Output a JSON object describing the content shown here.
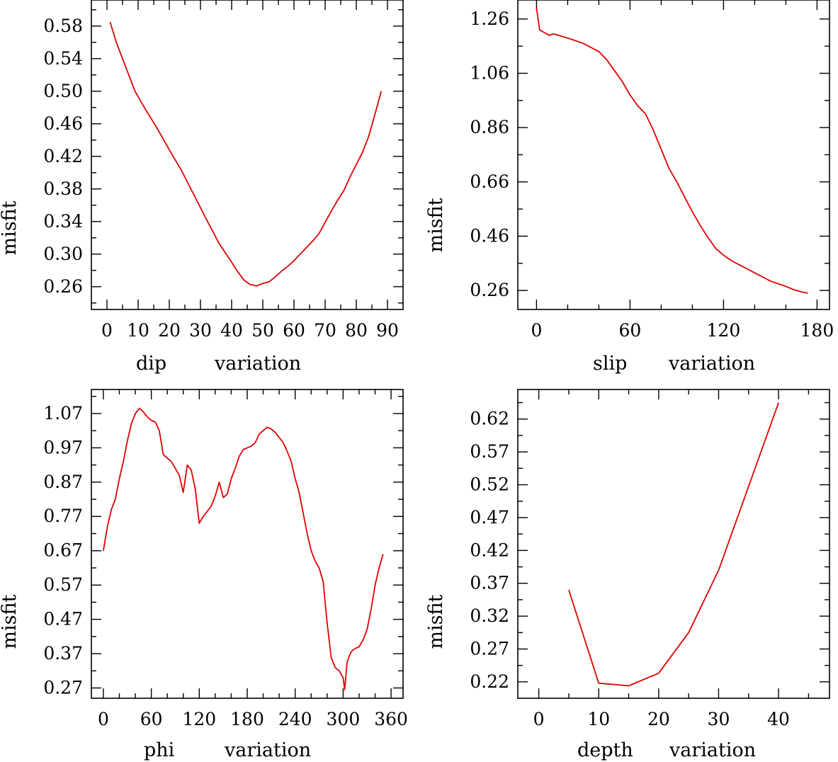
{
  "chart_data": [
    {
      "id": "dip",
      "type": "line",
      "xlabel_parts": [
        "dip",
        "variation"
      ],
      "ylabel": "misfit",
      "xlim": [
        -5,
        95
      ],
      "ylim": [
        0.232,
        0.612
      ],
      "xticks": [
        0,
        10,
        20,
        30,
        40,
        50,
        60,
        70,
        80,
        90
      ],
      "xtick_labels": [
        "0",
        "10",
        "20",
        "30",
        "40",
        "50",
        "60",
        "70",
        "80",
        "90"
      ],
      "xminor": [
        5,
        15,
        25,
        35,
        45,
        55,
        65,
        75,
        85
      ],
      "yticks": [
        0.26,
        0.3,
        0.34,
        0.38,
        0.42,
        0.46,
        0.5,
        0.54,
        0.58
      ],
      "ytick_labels": [
        "0.26",
        "0.30",
        "0.34",
        "0.38",
        "0.42",
        "0.46",
        "0.50",
        "0.54",
        "0.58"
      ],
      "yminor": [
        0.24,
        0.28,
        0.32,
        0.36,
        0.4,
        0.44,
        0.48,
        0.52,
        0.56,
        0.6
      ],
      "series": [
        {
          "name": "misfit",
          "color": "#e00000",
          "x": [
            1,
            3,
            6,
            9,
            12,
            16,
            20,
            24,
            28,
            32,
            36,
            40,
            42,
            44,
            46,
            48,
            50,
            52,
            54,
            56,
            58,
            60,
            62,
            64,
            66,
            68,
            70,
            72,
            74,
            76,
            78,
            80,
            82,
            84,
            86,
            88
          ],
          "y": [
            0.585,
            0.56,
            0.53,
            0.5,
            0.48,
            0.455,
            0.428,
            0.402,
            0.372,
            0.342,
            0.313,
            0.29,
            0.278,
            0.268,
            0.2625,
            0.261,
            0.264,
            0.266,
            0.272,
            0.279,
            0.285,
            0.292,
            0.3,
            0.308,
            0.316,
            0.325,
            0.339,
            0.353,
            0.366,
            0.378,
            0.395,
            0.41,
            0.425,
            0.445,
            0.472,
            0.5
          ]
        }
      ]
    },
    {
      "id": "slip",
      "type": "line",
      "xlabel_parts": [
        "slip",
        "variation"
      ],
      "ylabel": "misfit",
      "xlim": [
        -12,
        188
      ],
      "ylim": [
        0.19,
        1.33
      ],
      "xticks": [
        0,
        60,
        120,
        180
      ],
      "xtick_labels": [
        "0",
        "60",
        "120",
        "180"
      ],
      "xminor": [
        20,
        40,
        80,
        100,
        140,
        160
      ],
      "yticks": [
        0.26,
        0.46,
        0.66,
        0.86,
        1.06,
        1.26
      ],
      "ytick_labels": [
        "0.26",
        "0.46",
        "0.66",
        "0.86",
        "1.06",
        "1.26"
      ],
      "yminor": [
        0.36,
        0.56,
        0.76,
        0.96,
        1.16
      ],
      "series": [
        {
          "name": "misfit",
          "color": "#e00000",
          "x": [
            0,
            2,
            5,
            8,
            11,
            14,
            17,
            20,
            25,
            30,
            35,
            40,
            45,
            50,
            55,
            60,
            65,
            70,
            75,
            80,
            85,
            90,
            95,
            100,
            105,
            110,
            115,
            120,
            125,
            130,
            135,
            140,
            145,
            150,
            155,
            160,
            165,
            170,
            174
          ],
          "y": [
            1.3,
            1.22,
            1.21,
            1.2,
            1.205,
            1.2,
            1.195,
            1.19,
            1.18,
            1.17,
            1.155,
            1.14,
            1.11,
            1.07,
            1.03,
            0.98,
            0.94,
            0.91,
            0.85,
            0.78,
            0.71,
            0.66,
            0.605,
            0.55,
            0.5,
            0.455,
            0.415,
            0.39,
            0.37,
            0.355,
            0.34,
            0.325,
            0.31,
            0.295,
            0.285,
            0.275,
            0.263,
            0.255,
            0.25
          ]
        }
      ]
    },
    {
      "id": "phi",
      "type": "line",
      "xlabel_parts": [
        "phi",
        "variation"
      ],
      "ylabel": "misfit",
      "xlim": [
        -15,
        375
      ],
      "ylim": [
        0.24,
        1.14
      ],
      "xticks": [
        0,
        60,
        120,
        180,
        240,
        300,
        360
      ],
      "xtick_labels": [
        "0",
        "60",
        "120",
        "180",
        "240",
        "300",
        "360"
      ],
      "xminor": [
        20,
        40,
        80,
        100,
        140,
        160,
        200,
        220,
        260,
        280,
        320,
        340
      ],
      "yticks": [
        0.27,
        0.37,
        0.47,
        0.57,
        0.67,
        0.77,
        0.87,
        0.97,
        1.07
      ],
      "ytick_labels": [
        "0.27",
        "0.37",
        "0.47",
        "0.57",
        "0.67",
        "0.77",
        "0.87",
        "0.97",
        "1.07"
      ],
      "yminor": [
        0.32,
        0.42,
        0.52,
        0.62,
        0.72,
        0.82,
        0.92,
        1.02,
        1.12
      ],
      "series": [
        {
          "name": "misfit",
          "color": "#e00000",
          "x": [
            0,
            5,
            10,
            15,
            20,
            25,
            30,
            35,
            40,
            45,
            50,
            55,
            60,
            65,
            70,
            75,
            80,
            85,
            90,
            95,
            100,
            105,
            110,
            115,
            120,
            125,
            130,
            135,
            140,
            145,
            150,
            155,
            160,
            165,
            170,
            175,
            180,
            185,
            190,
            195,
            200,
            205,
            210,
            215,
            220,
            225,
            230,
            235,
            240,
            245,
            250,
            255,
            260,
            265,
            270,
            275,
            280,
            285,
            290,
            295,
            300,
            302,
            305,
            308,
            310,
            312,
            315,
            320,
            325,
            330,
            335,
            340,
            345,
            350
          ],
          "y": [
            0.67,
            0.74,
            0.79,
            0.82,
            0.88,
            0.93,
            0.99,
            1.04,
            1.07,
            1.085,
            1.075,
            1.06,
            1.05,
            1.045,
            1.02,
            0.95,
            0.94,
            0.93,
            0.91,
            0.89,
            0.84,
            0.92,
            0.905,
            0.85,
            0.75,
            0.77,
            0.785,
            0.8,
            0.83,
            0.87,
            0.825,
            0.835,
            0.88,
            0.91,
            0.945,
            0.965,
            0.97,
            0.975,
            0.985,
            1.01,
            1.02,
            1.03,
            1.025,
            1.015,
            1.0,
            0.985,
            0.96,
            0.93,
            0.88,
            0.84,
            0.78,
            0.72,
            0.67,
            0.64,
            0.62,
            0.58,
            0.46,
            0.36,
            0.33,
            0.32,
            0.3,
            0.265,
            0.345,
            0.365,
            0.375,
            0.38,
            0.385,
            0.39,
            0.41,
            0.44,
            0.5,
            0.57,
            0.62,
            0.66
          ]
        }
      ]
    },
    {
      "id": "depth",
      "type": "line",
      "xlabel_parts": [
        "depth",
        "variation"
      ],
      "ylabel": "misfit",
      "xlim": [
        -3.5,
        48.5
      ],
      "ylim": [
        0.195,
        0.665
      ],
      "xticks": [
        0,
        10,
        20,
        30,
        40
      ],
      "xtick_labels": [
        "0",
        "10",
        "20",
        "30",
        "40"
      ],
      "xminor": [
        5,
        15,
        25,
        35,
        45
      ],
      "yticks": [
        0.22,
        0.27,
        0.32,
        0.37,
        0.42,
        0.47,
        0.52,
        0.57,
        0.62
      ],
      "ytick_labels": [
        "0.22",
        "0.27",
        "0.32",
        "0.37",
        "0.42",
        "0.47",
        "0.52",
        "0.57",
        "0.62"
      ],
      "yminor": [
        0.245,
        0.295,
        0.345,
        0.395,
        0.445,
        0.495,
        0.545,
        0.595,
        0.645
      ],
      "series": [
        {
          "name": "misfit",
          "color": "#e00000",
          "x": [
            5,
            10,
            15,
            20,
            25,
            30,
            40
          ],
          "y": [
            0.36,
            0.218,
            0.214,
            0.233,
            0.295,
            0.39,
            0.645
          ]
        }
      ]
    }
  ]
}
